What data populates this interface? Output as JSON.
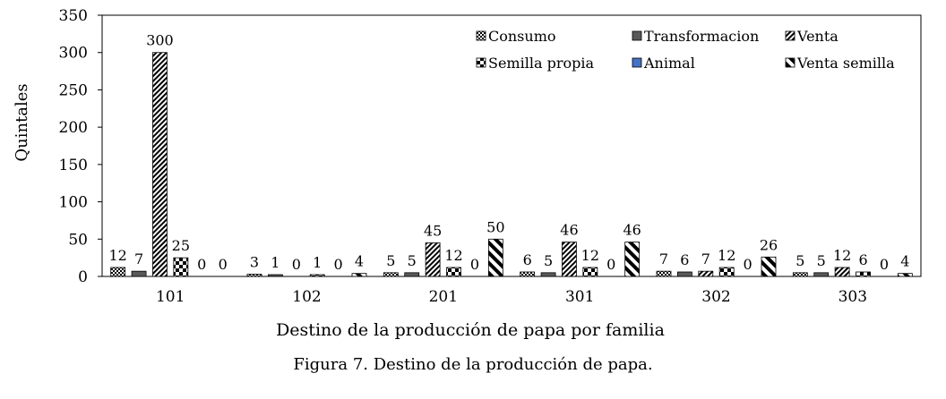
{
  "caption": "Figura 7. Destino de la producción de papa.",
  "chart_data": {
    "type": "bar",
    "title": "",
    "xlabel": "Destino de la producción de papa por familia",
    "ylabel": "Quintales",
    "ylim": [
      0,
      350
    ],
    "yticks": [
      0,
      50,
      100,
      150,
      200,
      250,
      300,
      350
    ],
    "grid": false,
    "legend_position": "top-right",
    "categories": [
      "101",
      "102",
      "201",
      "301",
      "302",
      "303"
    ],
    "series": [
      {
        "name": "Consumo",
        "values": [
          12,
          3,
          5,
          6,
          7,
          5
        ],
        "pattern": "check",
        "color": "#000000"
      },
      {
        "name": "Transformacion",
        "values": [
          7,
          1,
          5,
          5,
          6,
          5
        ],
        "pattern": "solid-gray",
        "color": "#595959"
      },
      {
        "name": "Venta",
        "values": [
          300,
          0,
          45,
          46,
          7,
          12
        ],
        "pattern": "diag-fine",
        "color": "#000000"
      },
      {
        "name": "Semilla propia",
        "values": [
          25,
          1,
          12,
          12,
          12,
          6
        ],
        "pattern": "bigcheck",
        "color": "#000000"
      },
      {
        "name": "Animal",
        "values": [
          0,
          0,
          0,
          0,
          0,
          0
        ],
        "pattern": "solid-blue",
        "color": "#4472C4"
      },
      {
        "name": "Venta semilla",
        "values": [
          0,
          4,
          50,
          46,
          26,
          4
        ],
        "pattern": "diag-bold",
        "color": "#000000"
      }
    ]
  }
}
